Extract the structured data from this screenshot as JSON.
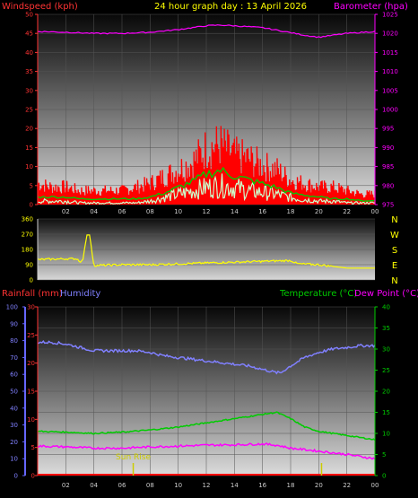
{
  "header": {
    "left_title": "Windspeed (kph)",
    "center_title": "24 hour graph day : 13 April 2026",
    "right_title": "Barometer (hpa)"
  },
  "colors": {
    "wind_axis": "#ff3333",
    "baro_axis": "#ff00ff",
    "gust": "#ff0000",
    "wind_avg": "#00cc00",
    "wind_speed": "#ccffcc",
    "baro": "#ff00ff",
    "dir": "#ffff00",
    "rain_axis": "#ff3333",
    "humidity": "#8080ff",
    "temperature": "#00cc00",
    "dewpoint": "#ff00ff",
    "rain": "#ff0000",
    "sunrise": "#cccc00",
    "temp_axis": "#00cc00"
  },
  "panel_wind": {
    "wind_ticks": [
      "0",
      "5",
      "10",
      "15",
      "20",
      "25",
      "30",
      "35",
      "40",
      "45",
      "50"
    ],
    "baro_ticks": [
      "975",
      "980",
      "985",
      "990",
      "995",
      "1000",
      "1005",
      "1010",
      "1015",
      "1020",
      "1025"
    ],
    "x_ticks": [
      "02",
      "04",
      "06",
      "08",
      "10",
      "12",
      "14",
      "16",
      "18",
      "20",
      "22",
      "00"
    ]
  },
  "panel_dir": {
    "deg_ticks": [
      "0",
      "90",
      "180",
      "270",
      "360"
    ],
    "compass": [
      "N",
      "W",
      "S",
      "E",
      "N"
    ]
  },
  "panel_th": {
    "rain_label": "Rainfall (mm)",
    "humidity_label": "Humidity",
    "temp_label": "Temperature (°C)",
    "dew_label": "Dew Point (°C)",
    "hum_ticks": [
      "0",
      "10",
      "20",
      "30",
      "40",
      "50",
      "60",
      "70",
      "80",
      "90",
      "100"
    ],
    "rain_ticks": [
      "0",
      "5",
      "10",
      "15",
      "20",
      "25",
      "30"
    ],
    "temp_ticks": [
      "0",
      "5",
      "10",
      "15",
      "20",
      "25",
      "30",
      "35",
      "40"
    ],
    "x_ticks": [
      "02",
      "04",
      "06",
      "08",
      "10",
      "12",
      "14",
      "16",
      "18",
      "20",
      "22",
      "00"
    ],
    "sunrise_label": "Sun Rise",
    "sunrise_hour": 6.8
  },
  "chart_data": [
    {
      "type": "line",
      "title": "24 hour graph day : 13 April 2026",
      "x_unit": "hour of day",
      "xlim": [
        0,
        24
      ],
      "ylabel": "Windspeed (kph)",
      "ylim": [
        0,
        50
      ],
      "y2label": "Barometer (hpa)",
      "y2lim": [
        975,
        1025
      ],
      "series": [
        {
          "name": "Windspeed (kph)",
          "role": "gust",
          "axis": "left",
          "x": [
            0,
            1,
            2,
            3,
            4,
            5,
            6,
            7,
            8,
            9,
            10,
            11,
            12,
            13,
            14,
            15,
            16,
            17,
            18,
            19,
            20,
            21,
            22,
            23,
            24
          ],
          "values": [
            6,
            5,
            5,
            4,
            4,
            4,
            4,
            5,
            6,
            8,
            10,
            12,
            16,
            17,
            14,
            13,
            11,
            10,
            7,
            6,
            5,
            5,
            4,
            3,
            3
          ]
        },
        {
          "name": "",
          "role": "average",
          "axis": "left",
          "x": [
            0,
            1,
            2,
            3,
            4,
            5,
            6,
            7,
            8,
            9,
            10,
            11,
            12,
            13,
            14,
            15,
            16,
            17,
            18,
            19,
            20,
            21,
            22,
            23,
            24
          ],
          "values": [
            2,
            2,
            2,
            1.5,
            1.5,
            1.5,
            1.5,
            1.5,
            2,
            3,
            4.5,
            6,
            8,
            9,
            7.5,
            6.5,
            5.5,
            4.5,
            3,
            2.5,
            2,
            1.5,
            1.5,
            1,
            1
          ]
        },
        {
          "name": "",
          "role": "speed",
          "axis": "left",
          "x": [
            0,
            1,
            2,
            3,
            4,
            5,
            6,
            7,
            8,
            9,
            10,
            11,
            12,
            13,
            14,
            15,
            16,
            17,
            18,
            19,
            20,
            21,
            22,
            23,
            24
          ],
          "values": [
            1,
            1,
            1,
            0.5,
            0.5,
            0.5,
            0.5,
            0.5,
            1,
            2,
            3,
            4,
            5,
            5.5,
            5,
            4,
            3.5,
            3,
            2,
            1.5,
            1,
            1,
            0.5,
            0.5,
            0.5
          ]
        },
        {
          "name": "Barometer (hpa)",
          "axis": "right",
          "x": [
            0,
            2,
            4,
            6,
            8,
            10,
            12,
            13,
            14,
            16,
            18,
            19,
            20,
            22,
            24
          ],
          "values": [
            1020.5,
            1020.3,
            1020.0,
            1020.0,
            1020.3,
            1021.0,
            1022.0,
            1022.2,
            1022.0,
            1021.5,
            1020.2,
            1019.5,
            1019.0,
            1020.0,
            1020.5
          ]
        }
      ]
    },
    {
      "type": "line",
      "title": "",
      "x_unit": "hour of day",
      "xlim": [
        0,
        24
      ],
      "ylim": [
        0,
        360
      ],
      "series": [
        {
          "name": "",
          "role": "wind direction",
          "x": [
            0,
            2,
            2.8,
            3,
            3.2,
            3.5,
            3.7,
            4,
            6,
            8,
            10,
            12,
            14,
            16,
            18,
            18.5,
            20,
            22,
            24
          ],
          "values": [
            120,
            125,
            125,
            110,
            110,
            265,
            265,
            85,
            90,
            90,
            95,
            100,
            105,
            110,
            115,
            95,
            90,
            70,
            70
          ]
        }
      ]
    },
    {
      "type": "line",
      "title": "",
      "x_unit": "hour of day",
      "xlim": [
        0,
        24
      ],
      "ylabel": "Humidity",
      "ylim": [
        0,
        100
      ],
      "y2label": "Temperature (°C) / Dew Point (°C)",
      "y2lim": [
        0,
        40
      ],
      "rainfall_axis": {
        "label": "Rainfall (mm)",
        "range": [
          0,
          30
        ]
      },
      "series": [
        {
          "name": "Humidity",
          "axis": "left",
          "x": [
            0,
            1,
            2,
            3,
            4,
            5,
            6,
            7,
            8,
            9,
            10,
            11,
            12,
            13,
            14,
            15,
            16,
            17,
            17.3,
            18,
            19,
            20,
            21,
            22,
            23,
            24
          ],
          "values": [
            79,
            79,
            78,
            76,
            74,
            74,
            74,
            74,
            73,
            71,
            70,
            69,
            68,
            67,
            66,
            65,
            63,
            61,
            61,
            65,
            70,
            73,
            75,
            76,
            77,
            77
          ]
        },
        {
          "name": "Temperature (°C)",
          "axis": "right",
          "x": [
            0,
            2,
            4,
            6,
            8,
            10,
            12,
            14,
            16,
            17,
            18,
            19,
            20,
            22,
            24
          ],
          "values": [
            10.5,
            10.3,
            10.0,
            10.3,
            10.8,
            11.5,
            12.5,
            13.5,
            14.5,
            15.0,
            13.5,
            11.5,
            10.5,
            9.5,
            8.5
          ]
        },
        {
          "name": "Dew Point (°C)",
          "axis": "right",
          "x": [
            0,
            2,
            4,
            6,
            8,
            10,
            12,
            14,
            16,
            17,
            18,
            20,
            22,
            24
          ],
          "values": [
            7.0,
            6.8,
            6.5,
            6.5,
            6.8,
            7.0,
            7.2,
            7.3,
            7.5,
            7.2,
            6.5,
            5.8,
            5.0,
            4.0
          ]
        },
        {
          "name": "Rainfall (mm)",
          "axis": "rain",
          "x": [
            0,
            24
          ],
          "values": [
            0,
            0
          ]
        }
      ]
    }
  ]
}
